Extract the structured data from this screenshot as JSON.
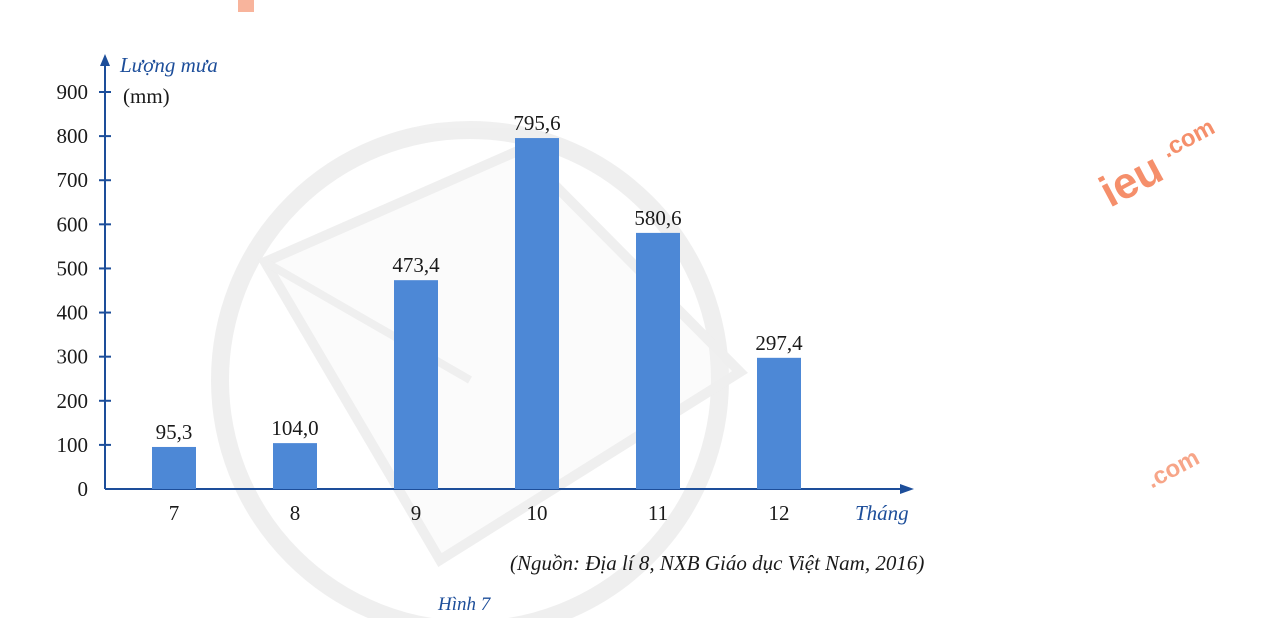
{
  "chart_data": {
    "type": "bar",
    "categories": [
      "7",
      "8",
      "9",
      "10",
      "11",
      "12"
    ],
    "values": [
      95.3,
      104.0,
      473.4,
      795.6,
      580.6,
      297.4
    ],
    "data_labels": [
      "95,3",
      "104,0",
      "473,4",
      "795,6",
      "580,6",
      "297,4"
    ],
    "y_ticks": [
      "0",
      "100",
      "200",
      "300",
      "400",
      "500",
      "600",
      "700",
      "800",
      "900"
    ],
    "ylim": [
      0,
      900
    ],
    "ylabel": "Lượng mưa",
    "yunit": "(mm)",
    "xlabel": "Tháng",
    "grid": false,
    "bar_color": "#4d88d6",
    "axis_color": "#1d4e9a"
  },
  "source_note": "(Nguồn: Địa lí 8, NXB Giáo dục Việt Nam, 2016)",
  "figure_caption": "Hình 7",
  "watermark": {
    "brand_suffix": ".com",
    "brand_text": "ieu",
    "color": "#f26a3a"
  }
}
